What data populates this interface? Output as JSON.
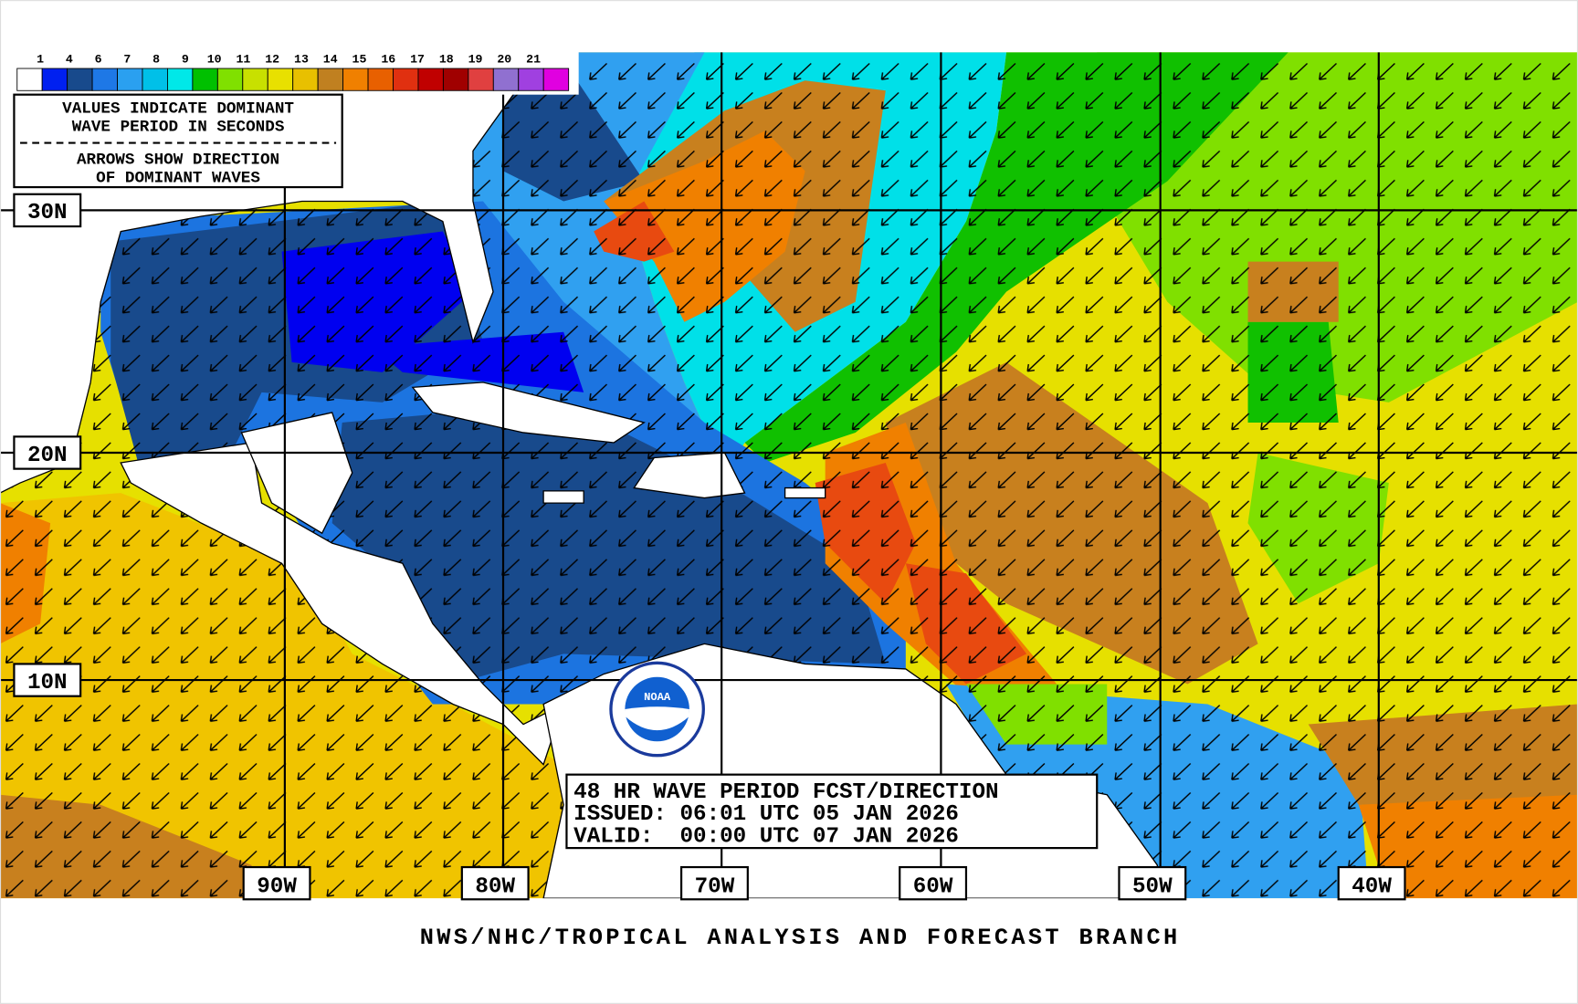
{
  "legend": {
    "labels": [
      "1",
      "4",
      "6",
      "7",
      "8",
      "9",
      "10",
      "11",
      "12",
      "13",
      "14",
      "15",
      "16",
      "17",
      "18",
      "19",
      "20",
      "21"
    ],
    "colors": [
      "#ffffff",
      "#0020f0",
      "#184a8c",
      "#1e78e6",
      "#2aa0f0",
      "#00c0e8",
      "#00e8e8",
      "#00c000",
      "#80e000",
      "#c8e000",
      "#e8e000",
      "#e8c000",
      "#c08020",
      "#f08000",
      "#e86000",
      "#e03010",
      "#c00000",
      "#a00000",
      "#e04040",
      "#9070d0",
      "#a040e0",
      "#e000e0"
    ]
  },
  "notes": {
    "lines": [
      "VALUES INDICATE DOMINANT",
      "WAVE PERIOD IN SECONDS",
      "ARROWS SHOW DIRECTION",
      "OF DOMINANT WAVES"
    ]
  },
  "lat_labels": [
    "30N",
    "20N",
    "10N"
  ],
  "lon_labels": [
    "90W",
    "80W",
    "70W",
    "60W",
    "50W",
    "40W"
  ],
  "title_box": {
    "lines": [
      "48 HR WAVE PERIOD FCST/DIRECTION",
      "ISSUED: 06:01 UTC 05 JAN 2026",
      "VALID:  00:00 UTC 07 JAN 2026"
    ]
  },
  "logo": {
    "text": "NOAA"
  },
  "footer": "NWS/NHC/TROPICAL ANALYSIS AND FORECAST BRANCH"
}
